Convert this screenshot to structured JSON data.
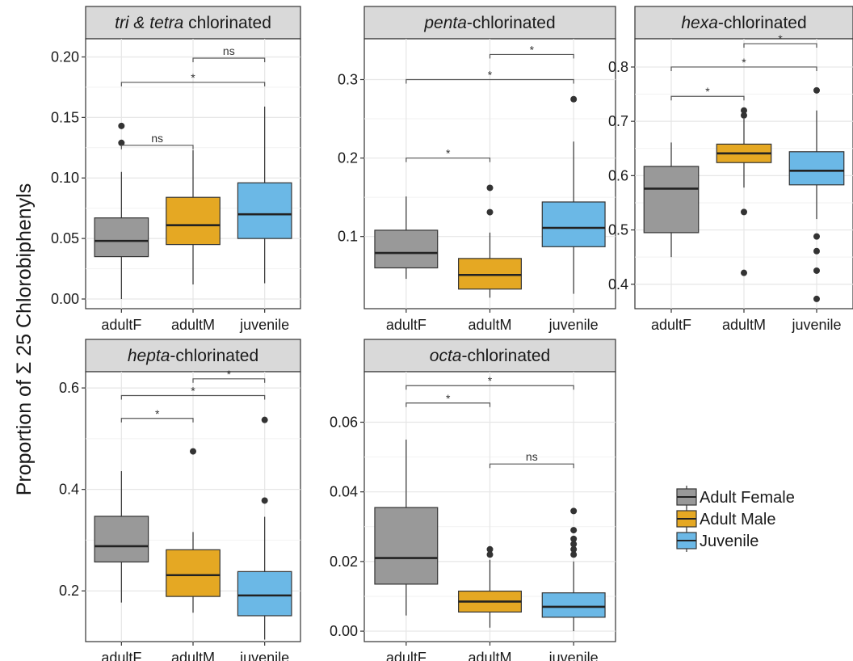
{
  "figure": {
    "ylabel": "Proportion of Σ 25 Chlorobiphenyls",
    "group_colors": {
      "adultF": "#999999",
      "adultM": "#E5A823",
      "juvenile": "#6BB8E6"
    },
    "legend": [
      {
        "label": "Adult Female",
        "group": "adultF"
      },
      {
        "label": "Adult Male",
        "group": "adultM"
      },
      {
        "label": "Juvenile",
        "group": "juvenile"
      }
    ]
  },
  "chart_data": [
    {
      "type": "boxplot",
      "title_italic": "tri & tetra",
      "title_rest": " chlorinated",
      "categories": [
        "adultF",
        "adultM",
        "juvenile"
      ],
      "ylim": [
        -0.008,
        0.215
      ],
      "yticks": [
        0.0,
        0.05,
        0.1,
        0.15,
        0.2
      ],
      "ytick_labels": [
        "0.00",
        "0.05",
        "0.10",
        "0.15",
        "0.20"
      ],
      "grid": true,
      "boxes": [
        {
          "group": "adultF",
          "min": 0.0,
          "q1": 0.035,
          "median": 0.048,
          "q3": 0.067,
          "max": 0.105,
          "outliers": [
            0.129,
            0.143
          ]
        },
        {
          "group": "adultM",
          "min": 0.012,
          "q1": 0.045,
          "median": 0.061,
          "q3": 0.084,
          "max": 0.123,
          "outliers": []
        },
        {
          "group": "juvenile",
          "min": 0.013,
          "q1": 0.05,
          "median": 0.07,
          "q3": 0.096,
          "max": 0.159,
          "outliers": []
        }
      ],
      "comparisons": [
        {
          "from": "adultF",
          "to": "adultM",
          "y": 0.127,
          "label": "ns"
        },
        {
          "from": "adultF",
          "to": "juvenile",
          "y": 0.179,
          "label": "*"
        },
        {
          "from": "adultM",
          "to": "juvenile",
          "y": 0.199,
          "label": "ns"
        }
      ]
    },
    {
      "type": "boxplot",
      "title_italic": "penta",
      "title_rest": "-chlorinated",
      "categories": [
        "adultF",
        "adultM",
        "juvenile"
      ],
      "ylim": [
        0.008,
        0.352
      ],
      "yticks": [
        0.1,
        0.2,
        0.3
      ],
      "ytick_labels": [
        "0.1",
        "0.2",
        "0.3"
      ],
      "grid": true,
      "boxes": [
        {
          "group": "adultF",
          "min": 0.046,
          "q1": 0.06,
          "median": 0.079,
          "q3": 0.108,
          "max": 0.151,
          "outliers": []
        },
        {
          "group": "adultM",
          "min": 0.022,
          "q1": 0.033,
          "median": 0.051,
          "q3": 0.072,
          "max": 0.105,
          "outliers": [
            0.131,
            0.162
          ]
        },
        {
          "group": "juvenile",
          "min": 0.027,
          "q1": 0.087,
          "median": 0.111,
          "q3": 0.144,
          "max": 0.221,
          "outliers": [
            0.275
          ]
        }
      ],
      "comparisons": [
        {
          "from": "adultF",
          "to": "adultM",
          "y": 0.2,
          "label": "*"
        },
        {
          "from": "adultF",
          "to": "juvenile",
          "y": 0.3,
          "label": "*"
        },
        {
          "from": "adultM",
          "to": "juvenile",
          "y": 0.332,
          "label": "*"
        }
      ]
    },
    {
      "type": "boxplot",
      "title_italic": "hexa",
      "title_rest": "-chlorinated",
      "categories": [
        "adultF",
        "adultM",
        "juvenile"
      ],
      "ylim": [
        0.355,
        0.852
      ],
      "yticks": [
        0.4,
        0.5,
        0.6,
        0.7,
        0.8
      ],
      "ytick_labels": [
        "0.4",
        "0.5",
        "0.6",
        "0.7",
        "0.8"
      ],
      "grid": true,
      "boxes": [
        {
          "group": "adultF",
          "min": 0.45,
          "q1": 0.495,
          "median": 0.576,
          "q3": 0.617,
          "max": 0.661,
          "outliers": []
        },
        {
          "group": "adultM",
          "min": 0.578,
          "q1": 0.624,
          "median": 0.641,
          "q3": 0.658,
          "max": 0.705,
          "outliers": [
            0.533,
            0.421,
            0.711,
            0.72
          ]
        },
        {
          "group": "juvenile",
          "min": 0.52,
          "q1": 0.583,
          "median": 0.609,
          "q3": 0.644,
          "max": 0.72,
          "outliers": [
            0.757,
            0.488,
            0.461,
            0.425,
            0.373
          ]
        }
      ],
      "comparisons": [
        {
          "from": "adultF",
          "to": "adultM",
          "y": 0.746,
          "label": "*"
        },
        {
          "from": "adultF",
          "to": "juvenile",
          "y": 0.8,
          "label": "*"
        },
        {
          "from": "adultM",
          "to": "juvenile",
          "y": 0.843,
          "label": "*"
        }
      ]
    },
    {
      "type": "boxplot",
      "title_italic": "hepta",
      "title_rest": "-chlorinated",
      "categories": [
        "adultF",
        "adultM",
        "juvenile"
      ],
      "ylim": [
        0.1,
        0.632
      ],
      "yticks": [
        0.2,
        0.4,
        0.6
      ],
      "ytick_labels": [
        "0.2",
        "0.4",
        "0.6"
      ],
      "grid": true,
      "boxes": [
        {
          "group": "adultF",
          "min": 0.177,
          "q1": 0.257,
          "median": 0.288,
          "q3": 0.347,
          "max": 0.436,
          "outliers": []
        },
        {
          "group": "adultM",
          "min": 0.157,
          "q1": 0.189,
          "median": 0.231,
          "q3": 0.281,
          "max": 0.316,
          "outliers": [
            0.475
          ]
        },
        {
          "group": "juvenile",
          "min": 0.104,
          "q1": 0.151,
          "median": 0.191,
          "q3": 0.238,
          "max": 0.346,
          "outliers": [
            0.378,
            0.537
          ]
        }
      ],
      "comparisons": [
        {
          "from": "adultF",
          "to": "adultM",
          "y": 0.54,
          "label": "*"
        },
        {
          "from": "adultF",
          "to": "juvenile",
          "y": 0.585,
          "label": "*"
        },
        {
          "from": "adultM",
          "to": "juvenile",
          "y": 0.618,
          "label": "*"
        }
      ]
    },
    {
      "type": "boxplot",
      "title_italic": "octa",
      "title_rest": "-chlorinated",
      "categories": [
        "adultF",
        "adultM",
        "juvenile"
      ],
      "ylim": [
        -0.003,
        0.0745
      ],
      "yticks": [
        0.0,
        0.02,
        0.04,
        0.06
      ],
      "ytick_labels": [
        "0.00",
        "0.02",
        "0.04",
        "0.06"
      ],
      "grid": true,
      "boxes": [
        {
          "group": "adultF",
          "min": 0.0045,
          "q1": 0.0135,
          "median": 0.021,
          "q3": 0.0355,
          "max": 0.055,
          "outliers": []
        },
        {
          "group": "adultM",
          "min": 0.001,
          "q1": 0.0055,
          "median": 0.0085,
          "q3": 0.0115,
          "max": 0.0205,
          "outliers": [
            0.022,
            0.0235
          ]
        },
        {
          "group": "juvenile",
          "min": 0.0,
          "q1": 0.004,
          "median": 0.007,
          "q3": 0.011,
          "max": 0.02,
          "outliers": [
            0.022,
            0.0235,
            0.025,
            0.0265,
            0.029,
            0.0345
          ]
        }
      ],
      "comparisons": [
        {
          "from": "adultF",
          "to": "adultM",
          "y": 0.0655,
          "label": "*"
        },
        {
          "from": "adultF",
          "to": "juvenile",
          "y": 0.0705,
          "label": "*"
        },
        {
          "from": "adultM",
          "to": "juvenile",
          "y": 0.048,
          "label": "ns"
        }
      ]
    }
  ]
}
